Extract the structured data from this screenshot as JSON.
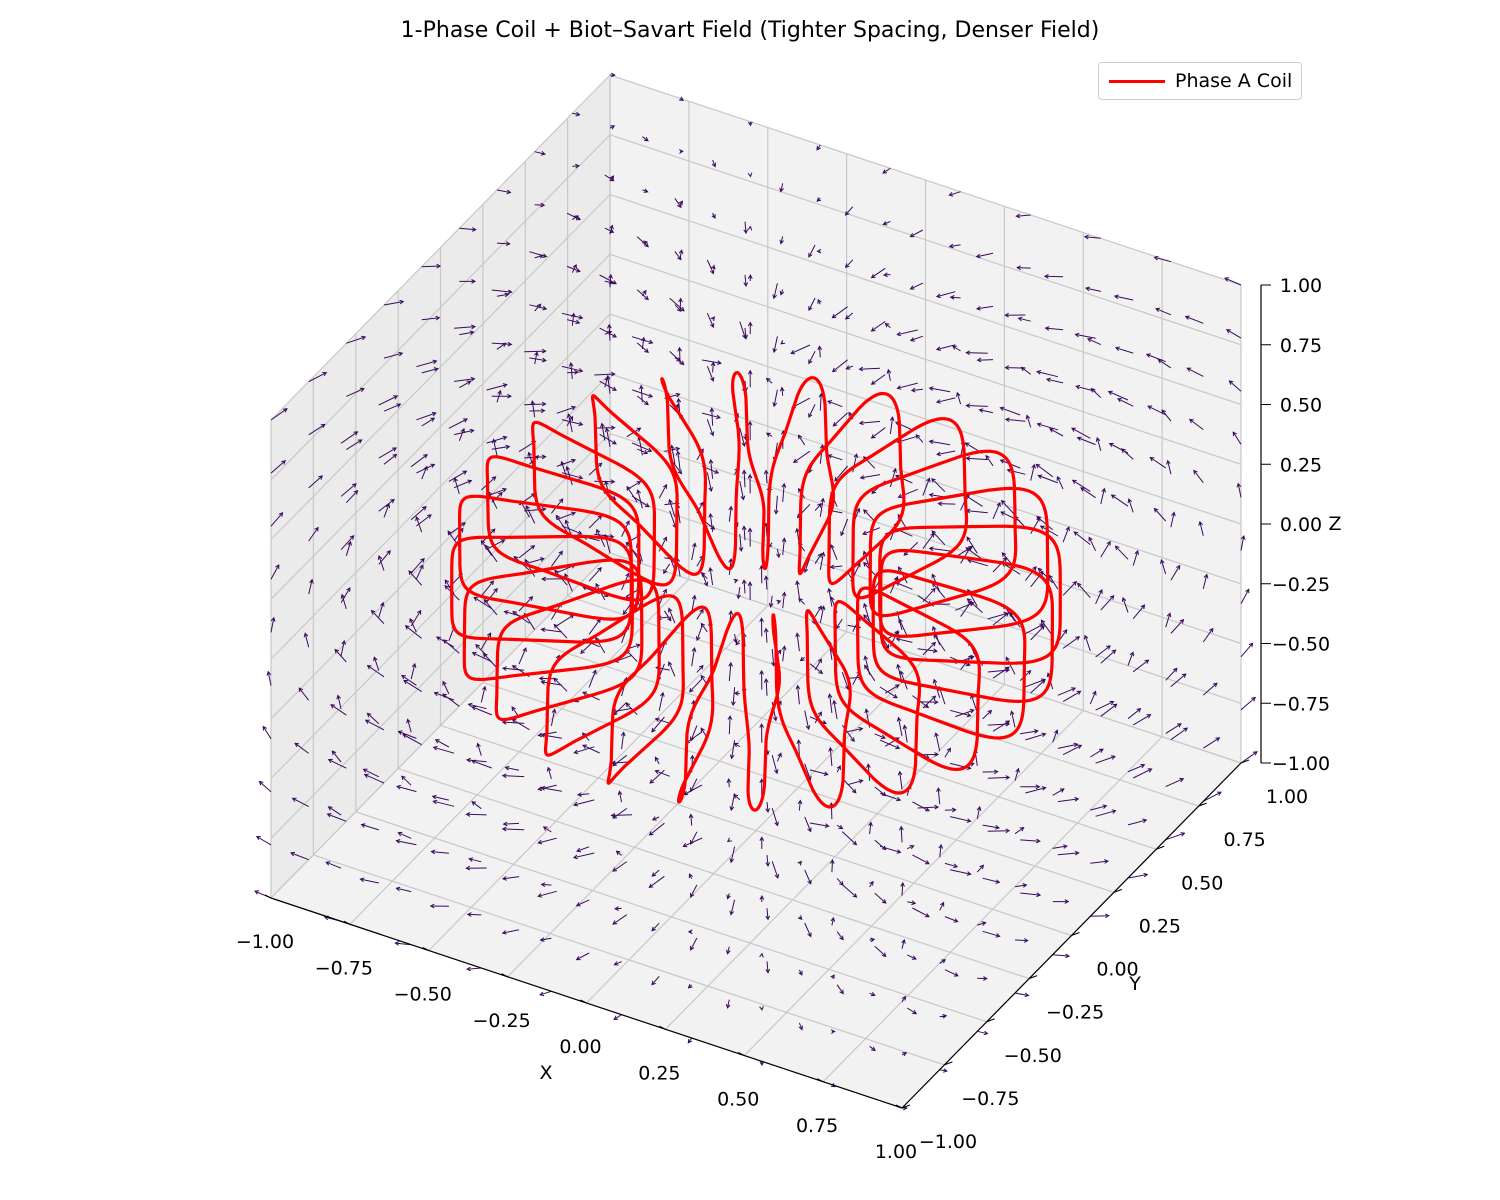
{
  "chart_data": {
    "type": "3d-quiver-line",
    "title": "1-Phase Coil + Biot–Savart Field (Tighter Spacing, Denser Field)",
    "xlabel": "X",
    "ylabel": "Y",
    "zlabel": "Z",
    "xlim": [
      -1.0,
      1.0
    ],
    "ylim": [
      -1.0,
      1.0
    ],
    "zlim": [
      -1.0,
      1.0
    ],
    "x_ticks": [
      "−1.00",
      "−0.75",
      "−0.50",
      "−0.25",
      "0.00",
      "0.25",
      "0.50",
      "0.75",
      "1.00"
    ],
    "y_ticks": [
      "−1.00",
      "−0.75",
      "−0.50",
      "−0.25",
      "0.00",
      "0.25",
      "0.50",
      "0.75",
      "1.00"
    ],
    "z_ticks": [
      "−1.00",
      "−0.75",
      "−0.50",
      "−0.25",
      "0.00",
      "0.25",
      "0.50",
      "0.75",
      "1.00"
    ],
    "grid": true,
    "legend_position": "top-right",
    "series": [
      {
        "name": "Phase A Coil",
        "kind": "line",
        "color": "#ff0000",
        "description_shape": "toroidal winding",
        "major_radius": 0.6,
        "minor_radius": 0.25,
        "turns": 24
      },
      {
        "kind": "quiver",
        "color": "#3b0a5e",
        "grid_range": [
          -1.0,
          1.0
        ],
        "grid_points_per_axis": 10
      }
    ]
  },
  "colors": {
    "coil": "#ff0000",
    "field_arrows": "#3b0a5e",
    "pane_left": "#ebebeb",
    "pane_right": "#f2f2f2",
    "pane_floor": "#f2f2f2",
    "grid": "#c8c8c8"
  }
}
